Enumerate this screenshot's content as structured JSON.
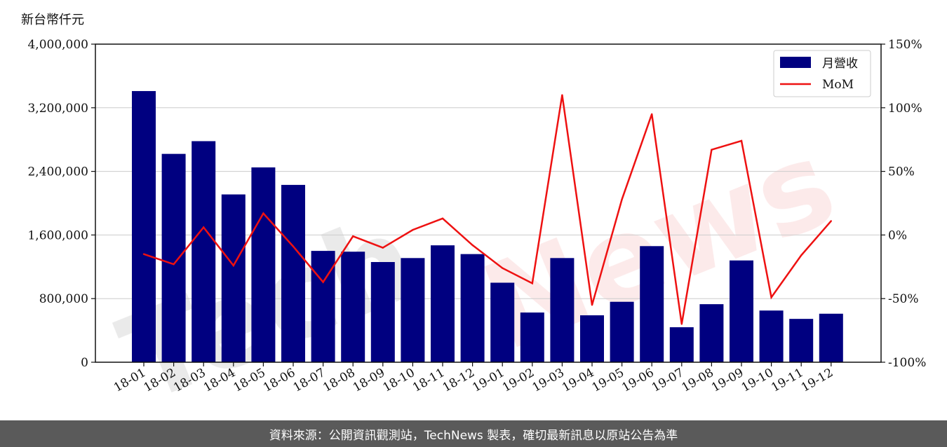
{
  "unit_label": "新台幣仟元",
  "footer_text": "資料來源：公開資訊觀測站，TechNews 製表，確切最新訊息以原站公告為準",
  "watermark": {
    "tech": "Tech",
    "news": "News"
  },
  "colors": {
    "bar": "#000080",
    "line": "#ee1111",
    "grid": "#cccccc",
    "watermark_tech": "#888888",
    "watermark_news": "#ee8888"
  },
  "chart_data": {
    "type": "bar",
    "categories": [
      "18-01",
      "18-02",
      "18-03",
      "18-04",
      "18-05",
      "18-06",
      "18-07",
      "18-08",
      "18-09",
      "18-10",
      "18-11",
      "18-12",
      "19-01",
      "19-02",
      "19-03",
      "19-04",
      "19-05",
      "19-06",
      "19-07",
      "19-08",
      "19-09",
      "19-10",
      "19-11",
      "19-12"
    ],
    "series": [
      {
        "name": "月營收",
        "type": "bar",
        "axis": "left",
        "values": [
          3410000,
          2620000,
          2780000,
          2110000,
          2450000,
          2230000,
          1400000,
          1390000,
          1260000,
          1310000,
          1470000,
          1360000,
          1000000,
          625000,
          1310000,
          590000,
          760000,
          1460000,
          440000,
          730000,
          1280000,
          650000,
          545000,
          610000
        ]
      },
      {
        "name": "MoM",
        "type": "line",
        "axis": "right",
        "values": [
          -15,
          -23,
          6,
          -24,
          17,
          -9,
          -37,
          -1,
          -10,
          4,
          13,
          -8,
          -26,
          -38,
          110,
          -55,
          28,
          95,
          -70,
          67,
          74,
          -49,
          -16,
          11
        ]
      }
    ],
    "y_left": {
      "min": 0,
      "max": 4000000,
      "ticks": [
        0,
        800000,
        1600000,
        2400000,
        3200000,
        4000000
      ],
      "tick_labels": [
        "0",
        "800,000",
        "1,600,000",
        "2,400,000",
        "3,200,000",
        "4,000,000"
      ]
    },
    "y_right": {
      "min": -100,
      "max": 150,
      "ticks": [
        -100,
        -50,
        0,
        50,
        100,
        150
      ],
      "tick_labels": [
        "-100%",
        "-50%",
        "0%",
        "50%",
        "100%",
        "150%"
      ]
    },
    "grid": true,
    "legend_position": "top-right"
  }
}
